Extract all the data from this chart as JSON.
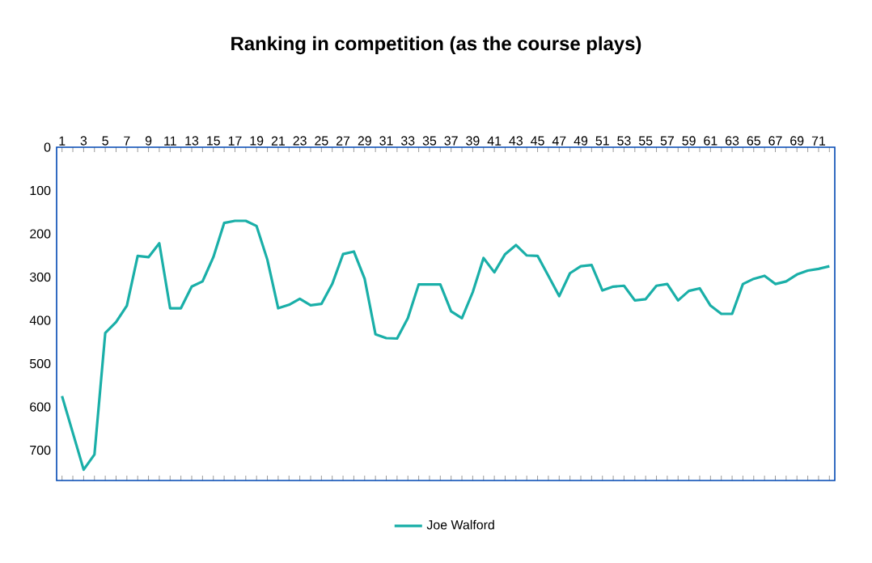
{
  "chart_data": {
    "type": "line",
    "title": "Ranking in competition (as the course plays)",
    "categories": [
      "1",
      null,
      "3",
      null,
      "5",
      null,
      "7",
      null,
      "9",
      null,
      "11",
      null,
      "13",
      null,
      "15",
      null,
      "17",
      null,
      "19",
      null,
      "21",
      null,
      "23",
      null,
      "25",
      null,
      "27",
      null,
      "29",
      null,
      "31",
      null,
      "33",
      null,
      "35",
      null,
      "37",
      null,
      "39",
      null,
      "41",
      null,
      "43",
      null,
      "45",
      null,
      "47",
      null,
      "49",
      null,
      "51",
      null,
      "53",
      null,
      "55",
      null,
      "57",
      null,
      "59",
      null,
      "61",
      null,
      "63",
      null,
      "65",
      null,
      "67",
      null,
      "69",
      null,
      "71",
      null
    ],
    "series": [
      {
        "name": "Joe Walford",
        "color": "#1aafa8",
        "values": [
          575,
          660,
          745,
          710,
          429,
          404,
          366,
          251,
          254,
          222,
          372,
          372,
          322,
          310,
          254,
          175,
          170,
          170,
          182,
          260,
          372,
          364,
          350,
          365,
          362,
          316,
          247,
          241,
          304,
          432,
          441,
          442,
          395,
          317,
          317,
          317,
          379,
          395,
          335,
          256,
          289,
          247,
          226,
          250,
          251,
          297,
          344,
          291,
          275,
          272,
          331,
          322,
          320,
          354,
          351,
          320,
          316,
          354,
          332,
          326,
          366,
          385,
          385,
          316,
          304,
          297,
          316,
          310,
          294,
          285,
          281,
          275
        ]
      }
    ],
    "ylim": [
      770,
      0
    ],
    "yticks": [
      0,
      100,
      200,
      300,
      400,
      500,
      600,
      700
    ],
    "grid": false,
    "legend": "bottom",
    "marker": "none",
    "line_style": "solid"
  }
}
